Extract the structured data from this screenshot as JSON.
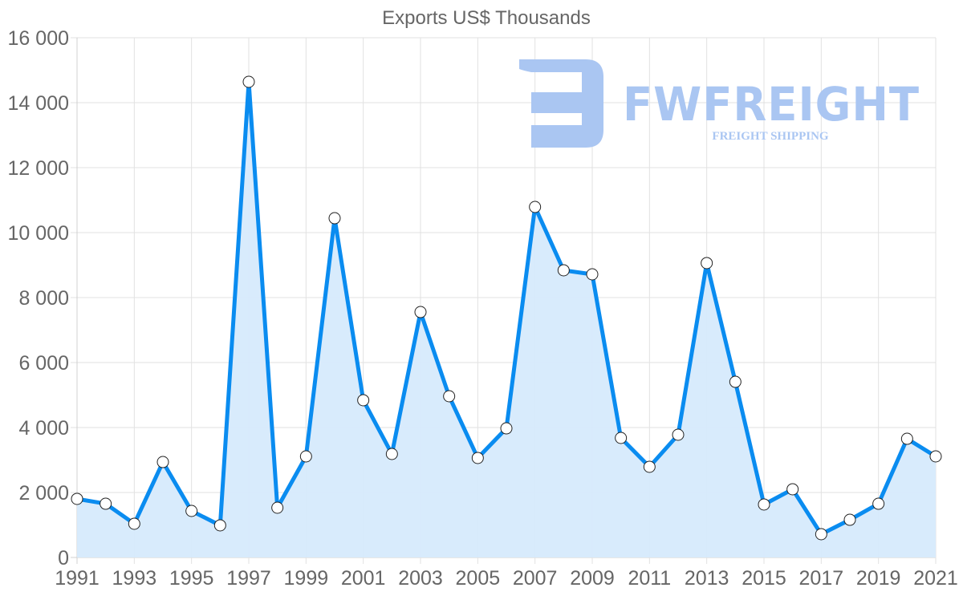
{
  "chart_data": {
    "type": "area",
    "title": "Exports US$ Thousands",
    "xlabel": "",
    "ylabel": "",
    "categories": [
      "1991",
      "1992",
      "1993",
      "1994",
      "1995",
      "1996",
      "1997",
      "1998",
      "1999",
      "2000",
      "2001",
      "2002",
      "2003",
      "2004",
      "2005",
      "2006",
      "2007",
      "2008",
      "2009",
      "2010",
      "2011",
      "2012",
      "2013",
      "2014",
      "2015",
      "2016",
      "2017",
      "2018",
      "2019",
      "2020",
      "2021"
    ],
    "series": [
      {
        "name": "Exports",
        "values": [
          1803,
          1654,
          1037,
          2938,
          1432,
          988,
          14642,
          1531,
          3111,
          10444,
          4840,
          3185,
          7555,
          4963,
          3062,
          3975,
          10790,
          8840,
          8716,
          3679,
          2790,
          3778,
          9062,
          5407,
          1630,
          2099,
          716,
          1160,
          1654,
          3654,
          3111
        ]
      }
    ],
    "ylim": [
      0,
      16000
    ],
    "yticks": [
      0,
      2000,
      4000,
      6000,
      8000,
      10000,
      12000,
      14000,
      16000
    ],
    "ytick_labels": [
      "0",
      "2 000",
      "4 000",
      "6 000",
      "8 000",
      "10 000",
      "12 000",
      "14 000",
      "16 000"
    ],
    "xtick_labels": [
      "1991",
      "1993",
      "1995",
      "1997",
      "1999",
      "2001",
      "2003",
      "2005",
      "2007",
      "2009",
      "2011",
      "2013",
      "2015",
      "2017",
      "2019",
      "2021"
    ],
    "grid": true,
    "legend": "none",
    "colors": {
      "line": "#0a8cf0",
      "fill": "#d6eafc",
      "marker_fill": "#ffffff",
      "marker_stroke": "#222222"
    }
  },
  "watermark": {
    "brand": "FWFREIGHT",
    "tagline": "FREIGHT SHIPPING",
    "color": "#aac6f2"
  }
}
